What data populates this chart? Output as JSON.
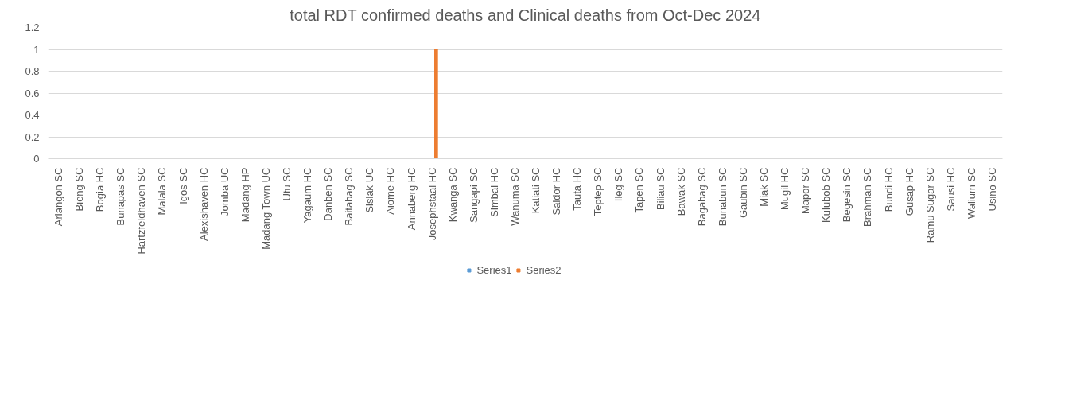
{
  "chart_data": {
    "type": "bar",
    "title": "total RDT confirmed deaths and Clinical deaths from Oct-Dec 2024",
    "categories": [
      "Ariangon SC",
      "Bieng SC",
      "Bogia HC",
      "Bunapas SC",
      "Hartzfeldhaven SC",
      "Malala SC",
      "Igos SC",
      "Alexishaven HC",
      "Jomba UC",
      "Madang HP",
      "Madang Town UC",
      "Utu SC",
      "Yagaum HC",
      "Danben SC",
      "Baitabag SC",
      "Sisiak UC",
      "Aiome HC",
      "Annaberg HC",
      "Josephstaal HC",
      "Kwanga SC",
      "Sangapi SC",
      "Simbai HC",
      "Wanuma SC",
      "Katiati SC",
      "Saidor HC",
      "Tauta HC",
      "Teptep SC",
      "Ileg SC",
      "Tapen SC",
      "Biliau SC",
      "Bawak SC",
      "Bagabag SC",
      "Bunabun SC",
      "Gaubin SC",
      "Miak SC",
      "Mugil HC",
      "Mapor SC",
      "Kulubob SC",
      "Begesin SC",
      "Brahman SC",
      "Bundi HC",
      "Gusap HC",
      "Ramu Sugar SC",
      "Sausi HC",
      "Walium SC",
      "Usino SC"
    ],
    "series": [
      {
        "name": "Series1",
        "color": "#5b9bd5",
        "values": [
          0,
          0,
          0,
          0,
          0,
          0,
          0,
          0,
          0,
          0,
          0,
          0,
          0,
          0,
          0,
          0,
          0,
          0,
          0,
          0,
          0,
          0,
          0,
          0,
          0,
          0,
          0,
          0,
          0,
          0,
          0,
          0,
          0,
          0,
          0,
          0,
          0,
          0,
          0,
          0,
          0,
          0,
          0,
          0,
          0,
          0
        ]
      },
      {
        "name": "Series2",
        "color": "#ed7d31",
        "values": [
          0,
          0,
          0,
          0,
          0,
          0,
          0,
          0,
          0,
          0,
          0,
          0,
          0,
          0,
          0,
          0,
          0,
          0,
          1,
          0,
          0,
          0,
          0,
          0,
          0,
          0,
          0,
          0,
          0,
          0,
          0,
          0,
          0,
          0,
          0,
          0,
          0,
          0,
          0,
          0,
          0,
          0,
          0,
          0,
          0,
          0
        ]
      }
    ],
    "ylim": [
      0,
      1.2
    ],
    "yticks": [
      0,
      0.2,
      0.4,
      0.6,
      0.8,
      1,
      1.2
    ],
    "grid": "y",
    "legend": "bottom"
  }
}
